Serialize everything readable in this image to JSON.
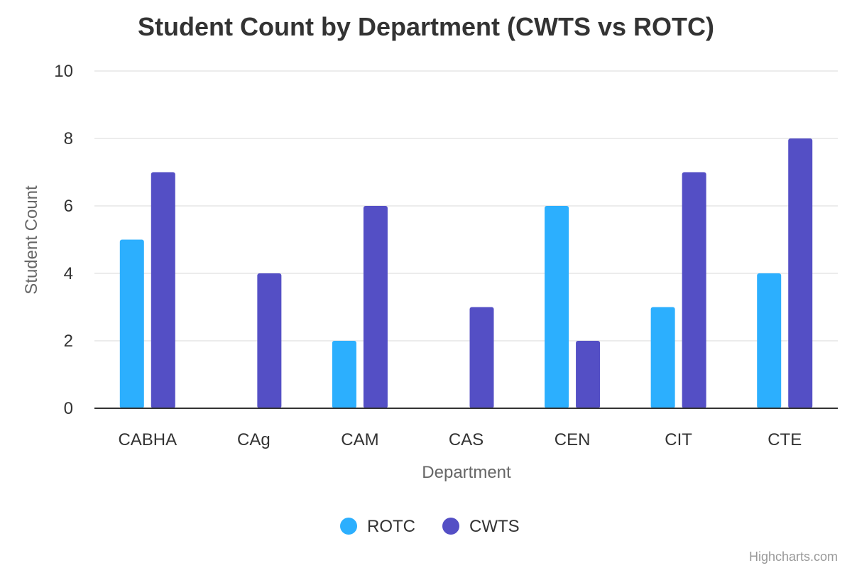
{
  "chart_data": {
    "type": "bar",
    "title": "Student Count by Department (CWTS vs ROTC)",
    "xlabel": "Department",
    "ylabel": "Student Count",
    "categories": [
      "CABHA",
      "CAg",
      "CAM",
      "CAS",
      "CEN",
      "CIT",
      "CTE"
    ],
    "series": [
      {
        "name": "ROTC",
        "color": "#2caffe",
        "values": [
          5,
          0,
          2,
          0,
          6,
          3,
          4
        ]
      },
      {
        "name": "CWTS",
        "color": "#544fc5",
        "values": [
          7,
          4,
          6,
          3,
          2,
          7,
          8
        ]
      }
    ],
    "ylim": [
      0,
      10
    ],
    "yticks": [
      "0",
      "2",
      "4",
      "6",
      "8",
      "10"
    ],
    "grid": true,
    "legend_position": "bottom-center"
  },
  "credits": "Highcharts.com"
}
